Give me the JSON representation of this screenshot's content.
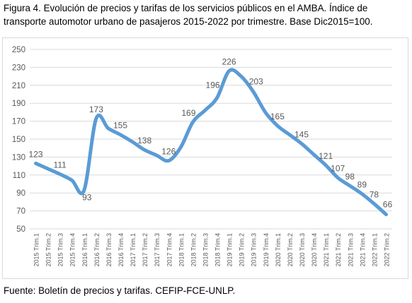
{
  "caption": {
    "line1": "Figura 4. Evolución de precios y tarifas de los servicios públicos en el AMBA. Índice de",
    "line2": "transporte automotor urbano de pasajeros 2015-2022 por trimestre. Base Dic2015=100."
  },
  "source": "Fuente: Boletín de precios y tarifas. CEFIP-FCE-UNLP.",
  "colors": {
    "line": "#5b9bd5",
    "grid": "#d9d9d9",
    "text": "#595959"
  },
  "chart_data": {
    "type": "line",
    "title": "",
    "xlabel": "",
    "ylabel": "",
    "ylim": [
      50,
      250
    ],
    "yticks": [
      50,
      70,
      90,
      110,
      130,
      150,
      170,
      190,
      210,
      230,
      250
    ],
    "grid": true,
    "legend": "none",
    "categories": [
      "2015 Trim.1",
      "2015 Trim.2",
      "2015 Trim.3",
      "2015 Trim.4",
      "2016 Trim.1",
      "2016 Trim.2",
      "2016 Trim.3",
      "2016 Trim.4",
      "2017 Trim.1",
      "2017 Trim.2",
      "2017 Trim.3",
      "2017 Trim.4",
      "2018 Trim.1",
      "2018 Trim.2",
      "2018 Trim.3",
      "2018 Trim.4",
      "2019 Trim.1",
      "2019 Trim.2",
      "2019 Trim.3",
      "2019 Trim.4",
      "2020 Trim.1",
      "2020 Trim.2",
      "2020 Trim.3",
      "2020 Trim.4",
      "2021 Trim.1",
      "2021 Trim.2",
      "2021 Trim.3",
      "2021 Trim.4",
      "2022 Trim.1",
      "2022 Trim.2"
    ],
    "values": [
      123,
      117,
      111,
      104,
      93,
      173,
      162,
      155,
      147,
      138,
      132,
      126,
      141,
      169,
      182,
      196,
      226,
      220,
      203,
      180,
      165,
      155,
      145,
      133,
      121,
      107,
      98,
      89,
      78,
      66
    ],
    "labels": [
      {
        "index": 0,
        "text": "123"
      },
      {
        "index": 2,
        "text": "111"
      },
      {
        "index": 4,
        "text": "93"
      },
      {
        "index": 5,
        "text": "173"
      },
      {
        "index": 7,
        "text": "155"
      },
      {
        "index": 9,
        "text": "138"
      },
      {
        "index": 11,
        "text": "126"
      },
      {
        "index": 13,
        "text": "169"
      },
      {
        "index": 15,
        "text": "196"
      },
      {
        "index": 16,
        "text": "226"
      },
      {
        "index": 18,
        "text": "203"
      },
      {
        "index": 20,
        "text": "165"
      },
      {
        "index": 22,
        "text": "145"
      },
      {
        "index": 24,
        "text": "121"
      },
      {
        "index": 25,
        "text": "107"
      },
      {
        "index": 26,
        "text": "98"
      },
      {
        "index": 27,
        "text": "89"
      },
      {
        "index": 28,
        "text": "78"
      },
      {
        "index": 29,
        "text": "66"
      }
    ]
  }
}
